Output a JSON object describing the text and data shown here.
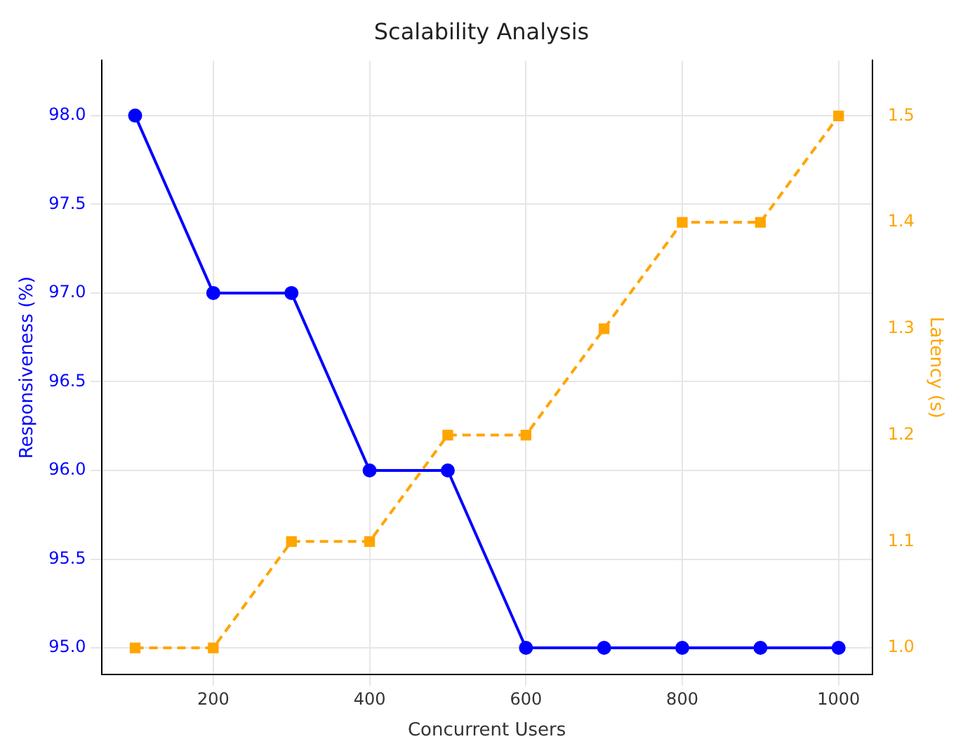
{
  "chart_data": {
    "type": "line",
    "title": "Scalability Analysis",
    "xlabel": "Concurrent Users",
    "ylabel": "Responsiveness (%)",
    "y2label": "Latency (s)",
    "x": [
      100,
      200,
      300,
      400,
      500,
      600,
      700,
      800,
      900,
      1000
    ],
    "series": [
      {
        "color": "#0000ff",
        "marker": "circle",
        "line_style": "solid",
        "values": [
          98,
          97,
          97,
          96,
          96,
          95,
          95,
          95,
          95,
          95
        ]
      },
      {
        "color": "#ffa500",
        "marker": "square",
        "line_style": "dashed",
        "axis": "y2",
        "values": [
          1.0,
          1.0,
          1.1,
          1.1,
          1.2,
          1.2,
          1.3,
          1.4,
          1.4,
          1.5
        ]
      }
    ],
    "xlim": [
      57,
      1043
    ],
    "xticks": [
      200,
      400,
      600,
      800,
      1000
    ],
    "ylim": [
      94.85,
      98.31
    ],
    "yticks": [
      {
        "value": 95,
        "label": "95.0"
      },
      {
        "value": 95.5,
        "label": "95.5"
      },
      {
        "value": 96,
        "label": "96.0"
      },
      {
        "value": 96.5,
        "label": "96.5"
      },
      {
        "value": 97,
        "label": "97.0"
      },
      {
        "value": 97.5,
        "label": "97.5"
      },
      {
        "value": 98,
        "label": "98.0"
      }
    ],
    "y2lim": [
      0.975,
      1.552
    ],
    "y2ticks": [
      {
        "value": 1.0,
        "label": "1.0"
      },
      {
        "value": 1.1,
        "label": "1.1"
      },
      {
        "value": 1.2,
        "label": "1.2"
      },
      {
        "value": 1.3,
        "label": "1.3"
      },
      {
        "value": 1.4,
        "label": "1.4"
      },
      {
        "value": 1.5,
        "label": "1.5"
      }
    ],
    "grid": true,
    "legend": false
  }
}
